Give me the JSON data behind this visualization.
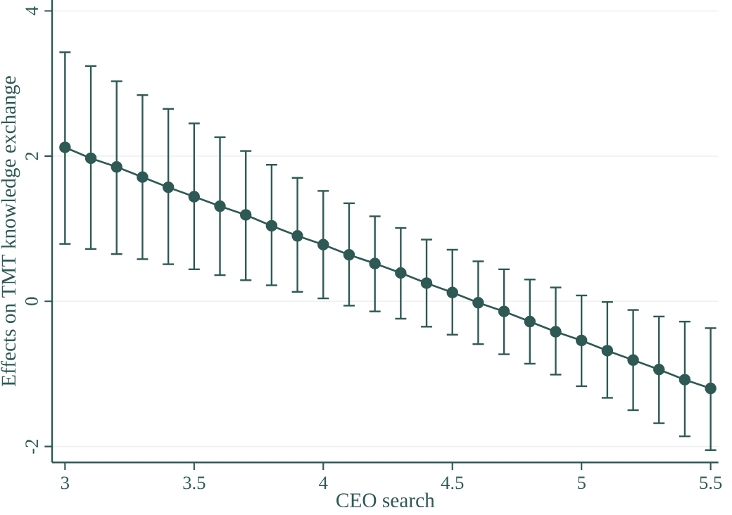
{
  "chart_data": {
    "type": "line",
    "xlabel": "CEO search",
    "ylabel": "Effects on TMT knowledge exchange",
    "x": [
      3,
      3.1,
      3.2,
      3.3,
      3.4,
      3.5,
      3.6,
      3.7,
      3.8,
      3.9,
      4,
      4.1,
      4.2,
      4.3,
      4.4,
      4.5,
      4.6,
      4.7,
      4.8,
      4.9,
      5,
      5.1,
      5.2,
      5.3,
      5.4,
      5.5
    ],
    "series": [
      {
        "color": "#2e5955",
        "values": [
          2.12,
          1.97,
          1.85,
          1.71,
          1.57,
          1.44,
          1.31,
          1.19,
          1.04,
          0.9,
          0.78,
          0.64,
          0.52,
          0.39,
          0.25,
          0.12,
          -0.02,
          -0.14,
          -0.28,
          -0.42,
          -0.54,
          -0.68,
          -0.81,
          -0.94,
          -1.08,
          -1.2
        ],
        "errors": [
          [
            0.79,
            3.43
          ],
          [
            0.72,
            3.24
          ],
          [
            0.65,
            3.03
          ],
          [
            0.58,
            2.84
          ],
          [
            0.51,
            2.65
          ],
          [
            0.44,
            2.45
          ],
          [
            0.36,
            2.26
          ],
          [
            0.29,
            2.07
          ],
          [
            0.22,
            1.88
          ],
          [
            0.13,
            1.7
          ],
          [
            0.04,
            1.52
          ],
          [
            -0.06,
            1.35
          ],
          [
            -0.14,
            1.17
          ],
          [
            -0.24,
            1.01
          ],
          [
            -0.35,
            0.85
          ],
          [
            -0.46,
            0.71
          ],
          [
            -0.59,
            0.55
          ],
          [
            -0.73,
            0.44
          ],
          [
            -0.86,
            0.3
          ],
          [
            -1.01,
            0.19
          ],
          [
            -1.17,
            0.08
          ],
          [
            -1.33,
            -0.01
          ],
          [
            -1.5,
            -0.12
          ],
          [
            -1.68,
            -0.21
          ],
          [
            -1.86,
            -0.28
          ],
          [
            -2.05,
            -0.37
          ]
        ]
      }
    ],
    "xlim": [
      2.95,
      5.53
    ],
    "ylim": [
      -2.22,
      4.15
    ],
    "xticks": [
      3,
      3.5,
      4,
      4.5,
      5,
      5.5
    ],
    "yticks": [
      -2,
      0,
      2,
      4
    ],
    "grid": "y",
    "marker": "circle",
    "line_style": "solid"
  }
}
